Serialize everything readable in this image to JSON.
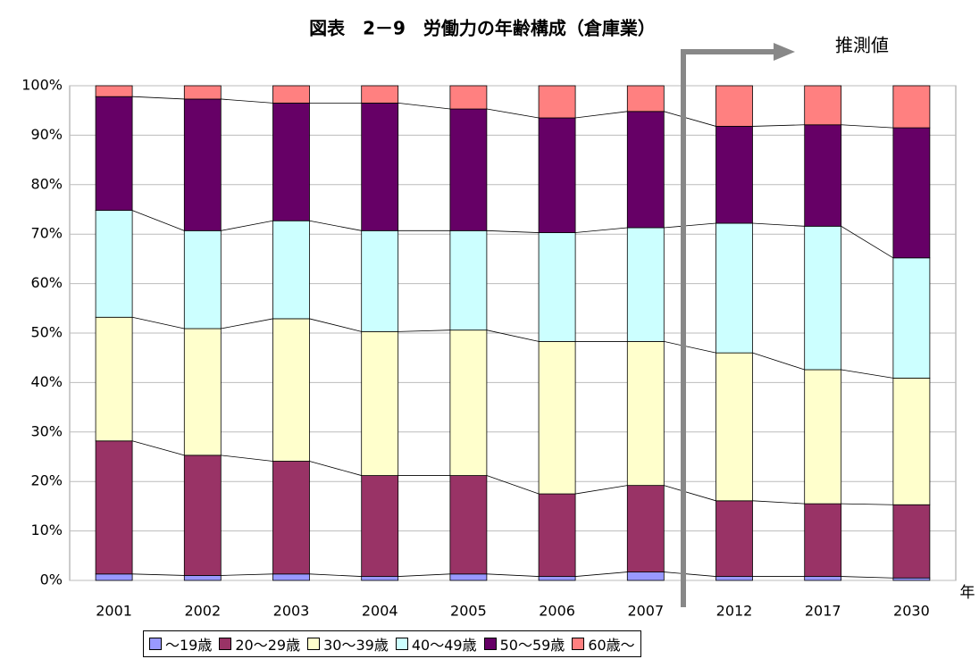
{
  "chart_data": {
    "type": "stacked-bar-100",
    "title": "図表　2－9　労働力の年齢構成（倉庫業）",
    "annotation": "推測値",
    "x_label": "年",
    "categories": [
      "2001",
      "2002",
      "2003",
      "2004",
      "2005",
      "2006",
      "2007",
      "2012",
      "2017",
      "2030"
    ],
    "series": [
      {
        "name": "～19歳",
        "color": "#9999ff",
        "values": [
          1.3,
          1.0,
          1.3,
          0.8,
          1.3,
          0.8,
          1.7,
          0.8,
          0.8,
          0.5
        ]
      },
      {
        "name": "20～29歳",
        "color": "#993366",
        "values": [
          26.9,
          24.3,
          22.8,
          20.4,
          19.9,
          16.7,
          17.5,
          15.3,
          14.7,
          14.8
        ]
      },
      {
        "name": "30～39歳",
        "color": "#ffffcc",
        "values": [
          25.0,
          25.6,
          28.8,
          29.1,
          29.4,
          30.8,
          29.1,
          29.9,
          27.1,
          25.6
        ]
      },
      {
        "name": "40～49歳",
        "color": "#ccffff",
        "values": [
          21.6,
          19.8,
          19.8,
          20.4,
          20.1,
          22.0,
          23.0,
          26.2,
          29.0,
          24.3
        ]
      },
      {
        "name": "50～59歳",
        "color": "#660066",
        "values": [
          23.0,
          26.6,
          23.8,
          25.8,
          24.6,
          23.2,
          23.5,
          19.6,
          20.5,
          26.3
        ]
      },
      {
        "name": "60歳～",
        "color": "#ff8080",
        "values": [
          2.2,
          2.7,
          3.5,
          3.5,
          4.7,
          6.5,
          5.2,
          8.2,
          7.9,
          8.5
        ]
      }
    ],
    "ylim": [
      0,
      100
    ],
    "yticks": [
      {
        "value": 0,
        "label": "0%"
      },
      {
        "value": 10,
        "label": "10%"
      },
      {
        "value": 20,
        "label": "20%"
      },
      {
        "value": 30,
        "label": "30%"
      },
      {
        "value": 40,
        "label": "40%"
      },
      {
        "value": 50,
        "label": "50%"
      },
      {
        "value": 60,
        "label": "60%"
      },
      {
        "value": 70,
        "label": "70%"
      },
      {
        "value": 80,
        "label": "80%"
      },
      {
        "value": 90,
        "label": "90%"
      },
      {
        "value": 100,
        "label": "100%"
      }
    ],
    "grid": true,
    "legend": "bottom"
  }
}
